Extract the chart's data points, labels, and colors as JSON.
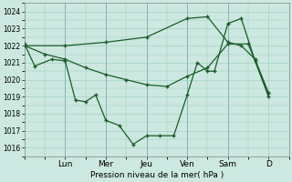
{
  "xlabel": "Pression niveau de la mer( hPa )",
  "bg_color": "#cce8e0",
  "grid_color": "#99ccbb",
  "line_color": "#1a5c28",
  "ylim": [
    1015.5,
    1024.5
  ],
  "yticks": [
    1016,
    1017,
    1018,
    1019,
    1020,
    1021,
    1022,
    1023,
    1024
  ],
  "day_labels": [
    "Lun",
    "Mer",
    "Jeu",
    "Ven",
    "Sam",
    "D"
  ],
  "day_positions": [
    1.0,
    2.0,
    3.0,
    4.0,
    5.0,
    6.0
  ],
  "xlim": [
    0.0,
    6.5
  ],
  "line1_x": [
    0.0,
    0.25,
    0.67,
    1.0,
    1.25,
    1.5,
    1.75,
    2.0,
    2.33,
    2.67,
    3.0,
    3.33,
    3.67,
    4.0,
    4.25,
    4.5,
    4.67,
    5.0,
    5.33,
    5.67,
    6.0
  ],
  "line1_y": [
    1022.1,
    1020.8,
    1021.2,
    1021.1,
    1018.8,
    1018.7,
    1019.1,
    1017.6,
    1017.3,
    1016.2,
    1016.7,
    1016.7,
    1016.7,
    1019.1,
    1021.0,
    1020.5,
    1020.5,
    1023.3,
    1023.6,
    1021.1,
    1019.0
  ],
  "line2_x": [
    0.0,
    0.5,
    1.0,
    1.5,
    2.0,
    2.5,
    3.0,
    3.5,
    4.0,
    4.5,
    5.0,
    5.5,
    6.0
  ],
  "line2_y": [
    1022.0,
    1021.5,
    1021.2,
    1020.7,
    1020.3,
    1020.0,
    1019.7,
    1019.6,
    1020.2,
    1020.7,
    1022.1,
    1022.1,
    1019.2
  ],
  "line3_x": [
    0.0,
    1.0,
    2.0,
    3.0,
    4.0,
    4.5,
    5.0,
    5.33,
    5.67,
    6.0
  ],
  "line3_y": [
    1022.0,
    1022.0,
    1022.2,
    1022.5,
    1023.6,
    1023.7,
    1022.2,
    1022.0,
    1021.2,
    1019.2
  ]
}
